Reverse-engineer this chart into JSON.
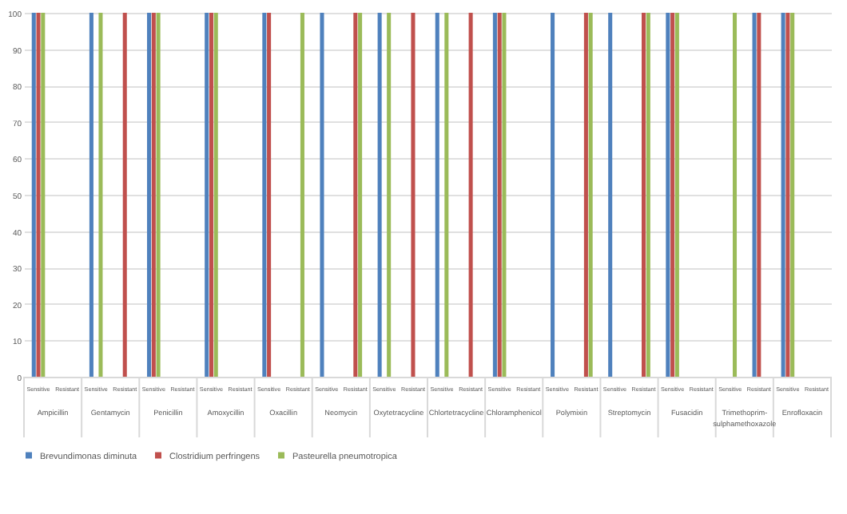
{
  "chart_data": {
    "type": "bar",
    "categories": [
      "Sensitive",
      "Resistant",
      "Sensitive",
      "Resistant",
      "Sensitive",
      "Resistant",
      "Sensitive",
      "Resistant",
      "Sensitive",
      "Resistant",
      "Sensitive",
      "Resistant",
      "Sensitive",
      "Resistant",
      "Sensitive",
      "Resistant",
      "Sensitive",
      "Resistant",
      "Sensitive",
      "Resistant",
      "Sensitive",
      "Resistant",
      "Sensitive",
      "Resistant",
      "Sensitive",
      "Resistant",
      "Sensitive",
      "Resistant"
    ],
    "annotations": [
      "Ampicillin",
      "Gentamycin",
      "Penicillin",
      "Amoxycillin",
      "Oxacillin",
      "Neomycin",
      "Oxytetracycline",
      "Chlortetracycline",
      "Chloramphenicol",
      "Polymixin",
      "Streptomycin",
      "Fusacidin",
      "Trimethoprim-sulphamethoxazole",
      "Enrofloxacin"
    ],
    "series": [
      {
        "name": "Brevundimonas diminuta",
        "color": "#4f81bd",
        "values": [
          100,
          0,
          100,
          0,
          100,
          0,
          100,
          0,
          100,
          0,
          100,
          0,
          100,
          0,
          100,
          0,
          100,
          0,
          100,
          0,
          100,
          0,
          100,
          0,
          0,
          100,
          100,
          0
        ]
      },
      {
        "name": "Clostridium perfringens",
        "color": "#c0504d",
        "values": [
          100,
          0,
          0,
          100,
          100,
          0,
          100,
          0,
          100,
          0,
          0,
          100,
          0,
          100,
          0,
          100,
          100,
          0,
          0,
          100,
          0,
          100,
          100,
          0,
          0,
          100,
          100,
          0
        ]
      },
      {
        "name": "Pasteurella pneumotropica",
        "color": "#9bbb59",
        "values": [
          100,
          0,
          100,
          0,
          100,
          0,
          100,
          0,
          0,
          100,
          0,
          100,
          100,
          0,
          100,
          0,
          100,
          0,
          0,
          100,
          0,
          100,
          100,
          0,
          100,
          0,
          100,
          0
        ]
      }
    ],
    "ylim": [
      0,
      100
    ],
    "yticks": [
      0,
      10,
      20,
      30,
      40,
      50,
      60,
      70,
      80,
      90,
      100
    ],
    "grid": "y",
    "legend": "bottom"
  }
}
